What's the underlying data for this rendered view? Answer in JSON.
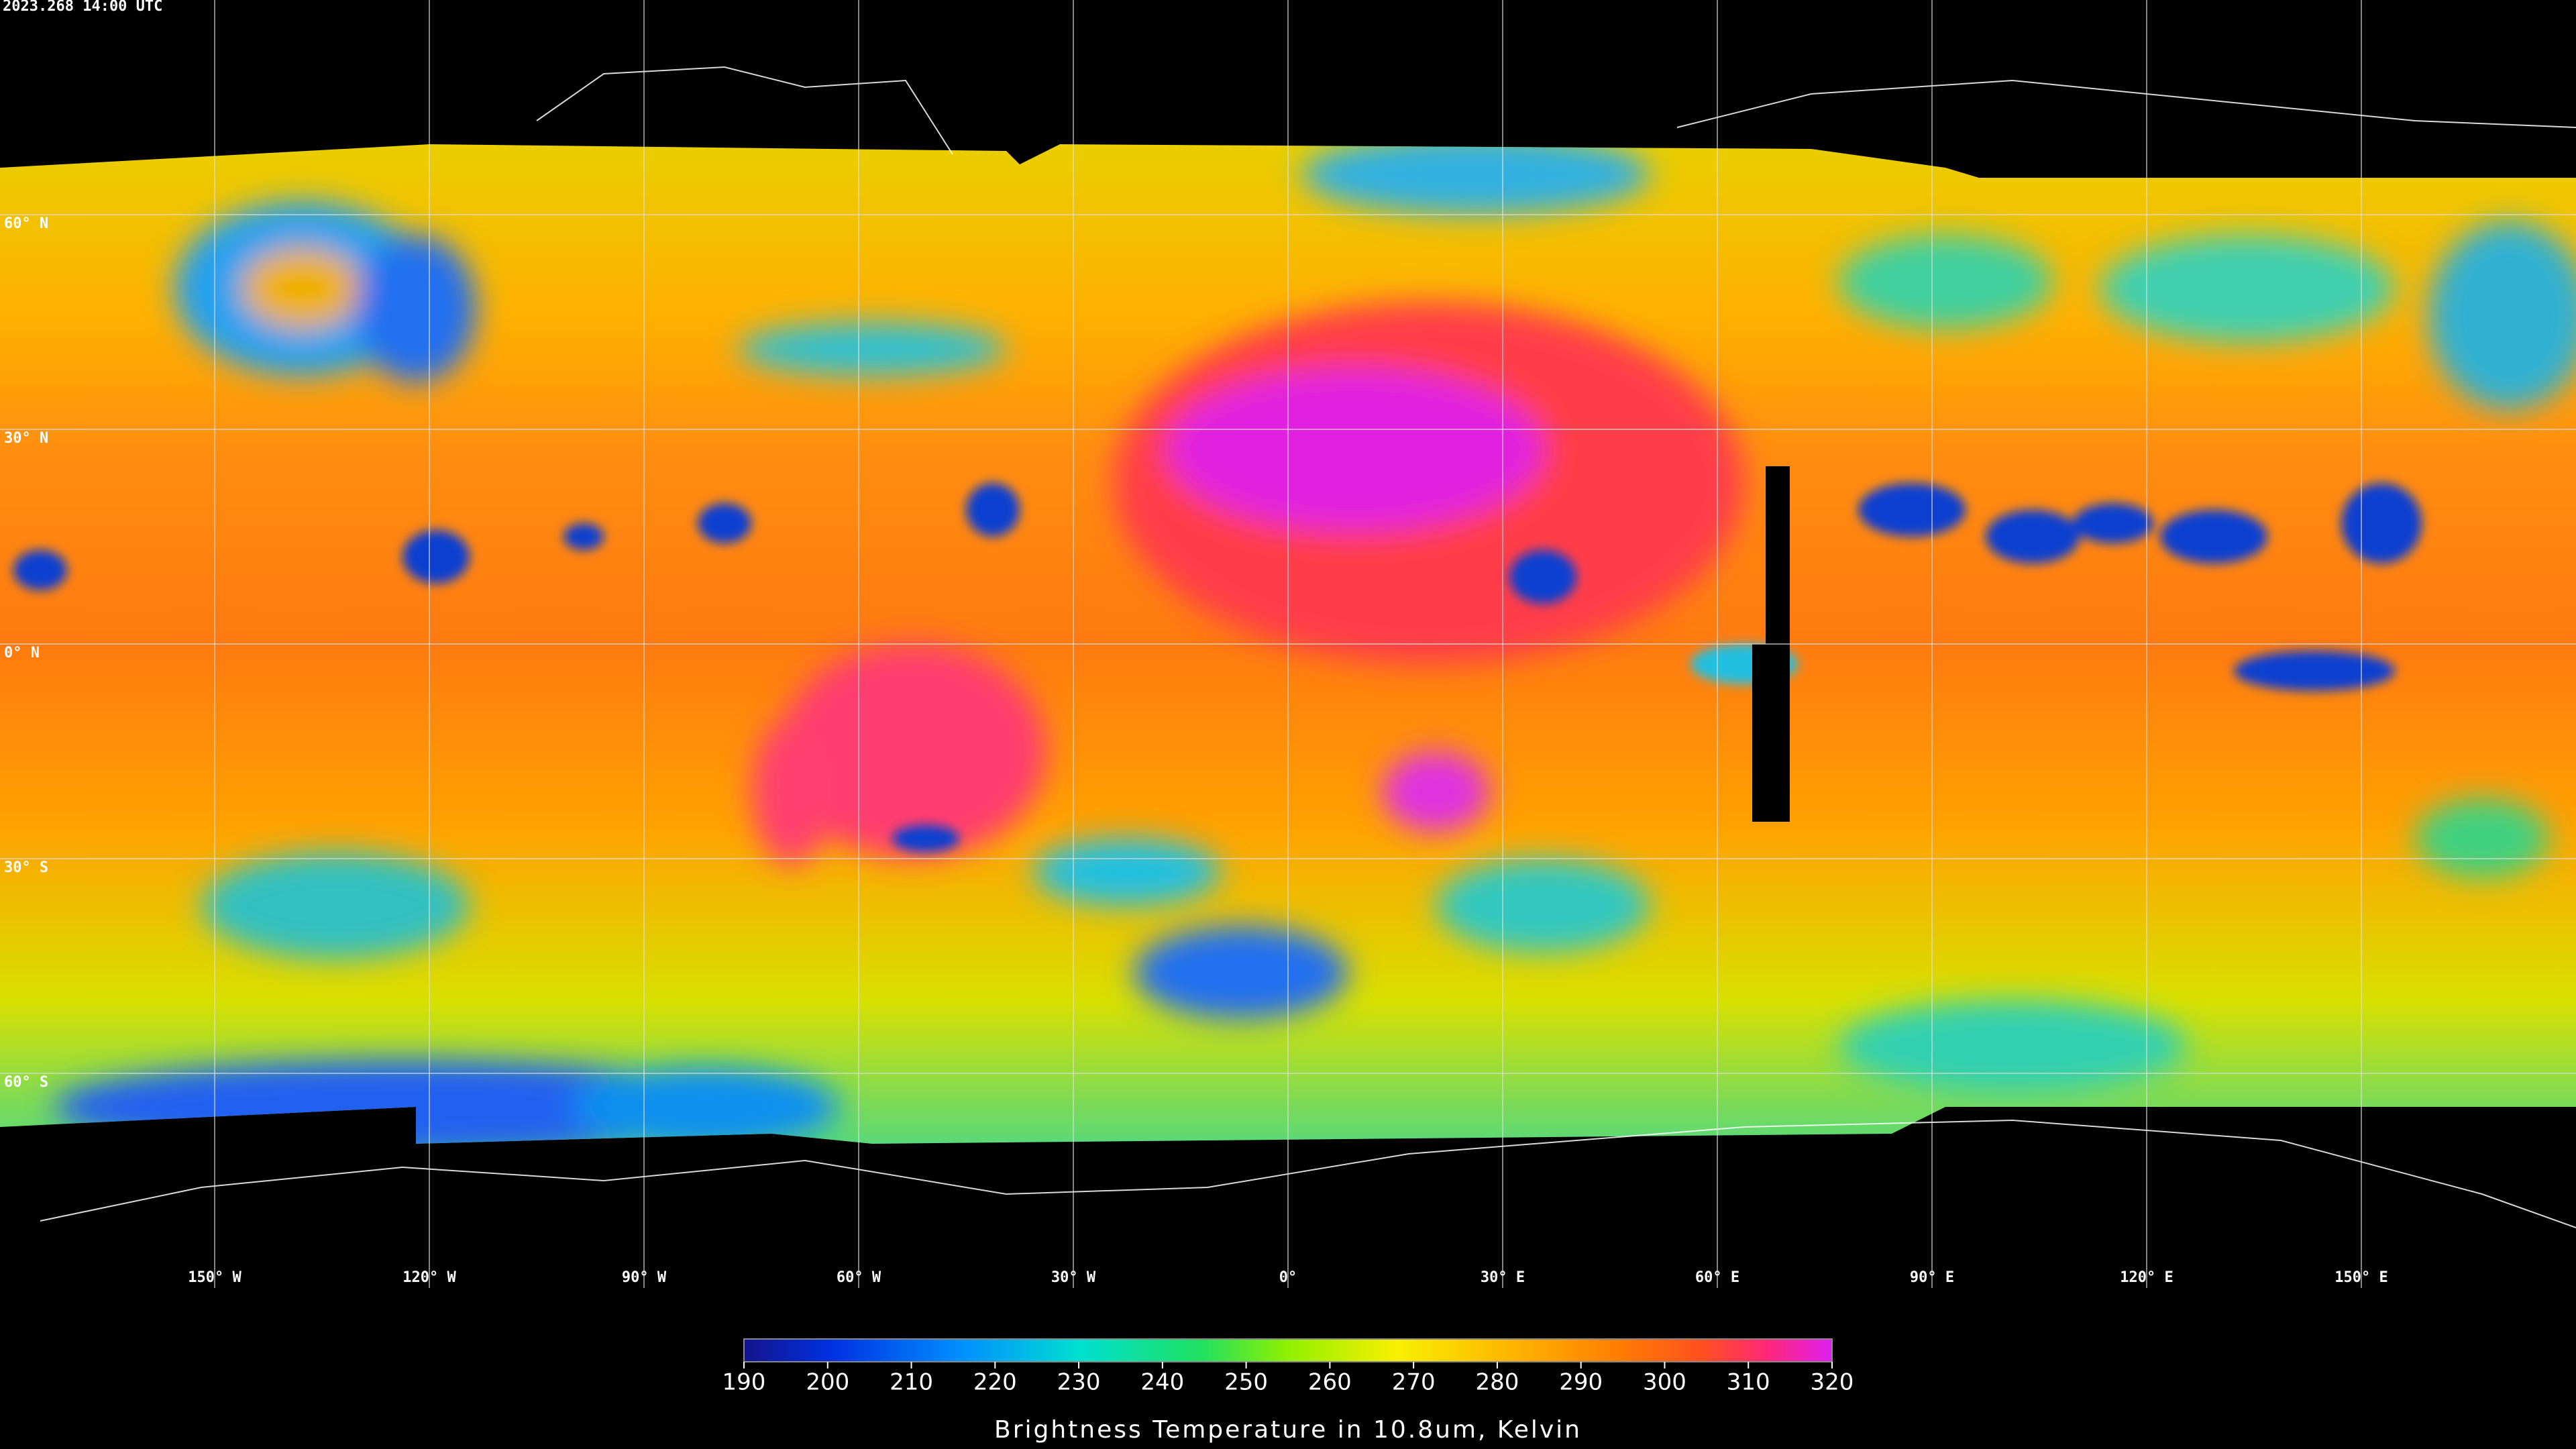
{
  "timestamp": "2023.268 14:00 UTC",
  "map": {
    "lat_labels": [
      "60° N",
      "30° N",
      "0° N",
      "30° S",
      "60° S"
    ],
    "lon_labels": [
      "150° W",
      "120° W",
      "90° W",
      "60° W",
      "30° W",
      "0°",
      "30° E",
      "60° E",
      "90° E",
      "120° E",
      "150° E"
    ]
  },
  "colorbar": {
    "ticks": [
      190,
      200,
      210,
      220,
      230,
      240,
      250,
      260,
      270,
      280,
      290,
      300,
      310,
      320
    ],
    "label": "Brightness Temperature in 10.8um, Kelvin"
  }
}
